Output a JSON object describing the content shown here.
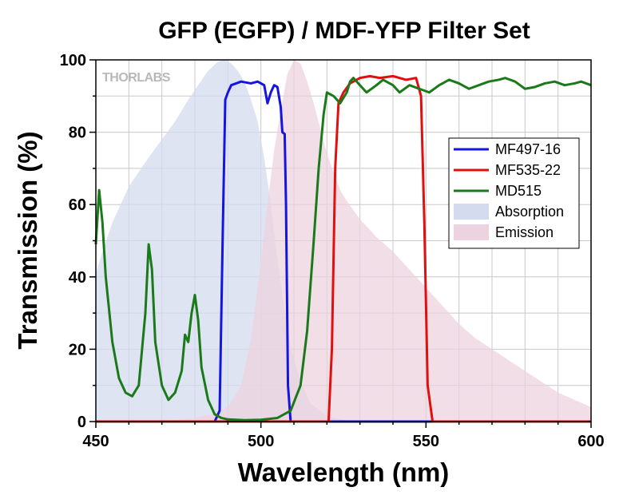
{
  "chart_data": {
    "type": "line",
    "title": "GFP (EGFP) / MDF-YFP Filter Set",
    "xlabel": "Wavelength (nm)",
    "ylabel": "Transmission (%)",
    "xlim": [
      450,
      600
    ],
    "ylim": [
      0,
      100
    ],
    "xticks": [
      450,
      500,
      550,
      600
    ],
    "yticks": [
      0,
      20,
      40,
      60,
      80,
      100
    ],
    "grid": true,
    "legend_position": "center-right",
    "watermark": "THORLABS",
    "series": [
      {
        "name": "MF497-16",
        "kind": "line",
        "color": "#1515e0",
        "points": [
          [
            450,
            0
          ],
          [
            486,
            0
          ],
          [
            487.5,
            3
          ],
          [
            488.5,
            55
          ],
          [
            489.2,
            89
          ],
          [
            490,
            91
          ],
          [
            491,
            93
          ],
          [
            494,
            94
          ],
          [
            497,
            93.5
          ],
          [
            499,
            94
          ],
          [
            501,
            93
          ],
          [
            502,
            88
          ],
          [
            503,
            91
          ],
          [
            504,
            93
          ],
          [
            505,
            92.5
          ],
          [
            506,
            87
          ],
          [
            506.5,
            80
          ],
          [
            507.2,
            79.5
          ],
          [
            507.6,
            60
          ],
          [
            508.2,
            10
          ],
          [
            509,
            0
          ],
          [
            600,
            0
          ]
        ]
      },
      {
        "name": "MF535-22",
        "kind": "line",
        "color": "#e01010",
        "points": [
          [
            450,
            0
          ],
          [
            520.5,
            0
          ],
          [
            521.5,
            20
          ],
          [
            522.5,
            70
          ],
          [
            523.5,
            88
          ],
          [
            525,
            91
          ],
          [
            527,
            93.5
          ],
          [
            530,
            95
          ],
          [
            533,
            95.5
          ],
          [
            536,
            95
          ],
          [
            540,
            95.5
          ],
          [
            544,
            94.5
          ],
          [
            547,
            95
          ],
          [
            548.5,
            90
          ],
          [
            549.5,
            55
          ],
          [
            550.5,
            10
          ],
          [
            552,
            0
          ],
          [
            600,
            0
          ]
        ]
      },
      {
        "name": "MD515",
        "kind": "line",
        "color": "#1a7a1a",
        "points": [
          [
            450,
            49
          ],
          [
            451,
            64
          ],
          [
            452,
            55
          ],
          [
            453,
            40
          ],
          [
            455,
            22
          ],
          [
            457,
            12
          ],
          [
            459,
            8
          ],
          [
            461,
            7
          ],
          [
            463,
            10
          ],
          [
            465,
            30
          ],
          [
            466,
            49
          ],
          [
            467,
            42
          ],
          [
            468,
            22
          ],
          [
            470,
            10
          ],
          [
            472,
            6
          ],
          [
            474,
            8
          ],
          [
            476,
            14
          ],
          [
            477,
            24
          ],
          [
            478,
            22
          ],
          [
            479,
            30
          ],
          [
            480,
            35
          ],
          [
            481,
            28
          ],
          [
            482,
            15
          ],
          [
            484,
            6
          ],
          [
            486,
            2
          ],
          [
            488,
            1
          ],
          [
            490,
            0.6
          ],
          [
            495,
            0.4
          ],
          [
            500,
            0.5
          ],
          [
            505,
            1
          ],
          [
            509,
            3
          ],
          [
            512,
            10
          ],
          [
            514,
            25
          ],
          [
            516,
            50
          ],
          [
            517.5,
            70
          ],
          [
            519,
            85
          ],
          [
            520,
            91
          ],
          [
            522,
            90
          ],
          [
            524,
            88
          ],
          [
            526,
            91
          ],
          [
            527,
            94
          ],
          [
            528,
            95
          ],
          [
            530,
            93
          ],
          [
            532,
            91
          ],
          [
            535,
            93
          ],
          [
            537,
            94.5
          ],
          [
            540,
            93
          ],
          [
            542,
            91
          ],
          [
            545,
            93
          ],
          [
            548,
            92
          ],
          [
            551,
            91
          ],
          [
            554,
            93
          ],
          [
            557,
            94.5
          ],
          [
            560,
            93.5
          ],
          [
            563,
            92
          ],
          [
            566,
            93
          ],
          [
            569,
            94
          ],
          [
            572,
            94.5
          ],
          [
            574,
            95
          ],
          [
            577,
            94
          ],
          [
            580,
            92
          ],
          [
            583,
            92.5
          ],
          [
            586,
            93.5
          ],
          [
            589,
            94
          ],
          [
            592,
            93
          ],
          [
            595,
            93.5
          ],
          [
            597,
            94
          ],
          [
            600,
            93
          ]
        ]
      },
      {
        "name": "Absorption",
        "kind": "area",
        "color": "#d4dbef",
        "points": [
          [
            450,
            41
          ],
          [
            452,
            47
          ],
          [
            455,
            55
          ],
          [
            458,
            61
          ],
          [
            460,
            65
          ],
          [
            463,
            69
          ],
          [
            466,
            73
          ],
          [
            470,
            78
          ],
          [
            474,
            83
          ],
          [
            478,
            89
          ],
          [
            481,
            93
          ],
          [
            484,
            97
          ],
          [
            487,
            99.5
          ],
          [
            489,
            100
          ],
          [
            491,
            99
          ],
          [
            493,
            97
          ],
          [
            495,
            94
          ],
          [
            497,
            89
          ],
          [
            499,
            83
          ],
          [
            501,
            73
          ],
          [
            503,
            60
          ],
          [
            505,
            45
          ],
          [
            507,
            32
          ],
          [
            509,
            21
          ],
          [
            511,
            14
          ],
          [
            513,
            9
          ],
          [
            515,
            5
          ],
          [
            518,
            3
          ],
          [
            520,
            1.5
          ],
          [
            525,
            0.5
          ],
          [
            530,
            0
          ],
          [
            600,
            0
          ]
        ]
      },
      {
        "name": "Emission",
        "kind": "area",
        "color": "#ecd3df",
        "points": [
          [
            450,
            0
          ],
          [
            470,
            0
          ],
          [
            480,
            1
          ],
          [
            485,
            2
          ],
          [
            490,
            4
          ],
          [
            494,
            10
          ],
          [
            497,
            23
          ],
          [
            500,
            44
          ],
          [
            502,
            60
          ],
          [
            504,
            75
          ],
          [
            506,
            86
          ],
          [
            508,
            96
          ],
          [
            510,
            100
          ],
          [
            512,
            99
          ],
          [
            514,
            94
          ],
          [
            516,
            88
          ],
          [
            518,
            81
          ],
          [
            520,
            74
          ],
          [
            522,
            69
          ],
          [
            524,
            64
          ],
          [
            526,
            61
          ],
          [
            530,
            56
          ],
          [
            535,
            51
          ],
          [
            540,
            47
          ],
          [
            545,
            42
          ],
          [
            550,
            37
          ],
          [
            555,
            32
          ],
          [
            560,
            27
          ],
          [
            565,
            23
          ],
          [
            570,
            20
          ],
          [
            575,
            17
          ],
          [
            580,
            14
          ],
          [
            585,
            11
          ],
          [
            590,
            8
          ],
          [
            595,
            6
          ],
          [
            600,
            4
          ]
        ]
      }
    ]
  }
}
